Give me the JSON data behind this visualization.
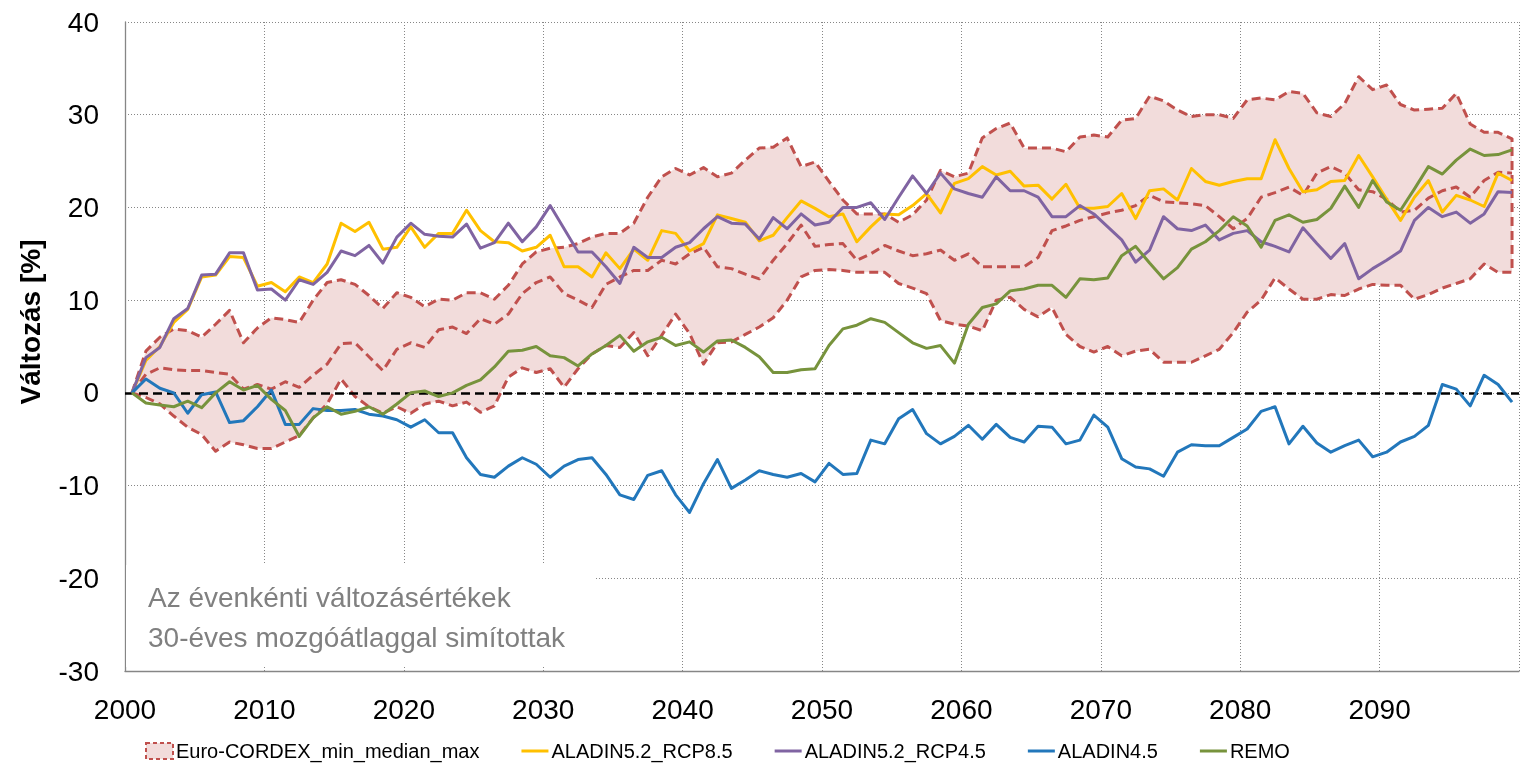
{
  "chart_data": {
    "type": "line",
    "ylabel": "Változás [%]",
    "annotations": [
      "Az évenkénti változásértékek\n30-éves mozgóátlaggal simítottak"
    ],
    "x": [
      2000.5,
      2001.5,
      2002.5,
      2003.5,
      2004.5,
      2005.5,
      2006.5,
      2007.5,
      2008.5,
      2009.5,
      2010.5,
      2011.5,
      2012.5,
      2013.5,
      2014.5,
      2015.5,
      2016.5,
      2017.5,
      2018.5,
      2019.5,
      2020.5,
      2021.5,
      2022.5,
      2023.5,
      2024.5,
      2025.5,
      2026.5,
      2027.5,
      2028.5,
      2029.5,
      2030.5,
      2031.5,
      2032.5,
      2033.5,
      2034.5,
      2035.5,
      2036.5,
      2037.5,
      2038.5,
      2039.5,
      2040.5,
      2041.5,
      2042.5,
      2043.5,
      2044.5,
      2045.5,
      2046.5,
      2047.5,
      2048.5,
      2049.5,
      2050.5,
      2051.5,
      2052.5,
      2053.5,
      2054.5,
      2055.5,
      2056.5,
      2057.5,
      2058.5,
      2059.5,
      2060.5,
      2061.5,
      2062.5,
      2063.5,
      2064.5,
      2065.5,
      2066.5,
      2067.5,
      2068.5,
      2069.5,
      2070.5,
      2071.5,
      2072.5,
      2073.5,
      2074.5,
      2075.5,
      2076.5,
      2077.5,
      2078.5,
      2079.5,
      2080.5,
      2081.5,
      2082.5,
      2083.5,
      2084.5,
      2085.5,
      2086.5,
      2087.5,
      2088.5,
      2089.5,
      2090.5,
      2091.5,
      2092.5,
      2093.5,
      2094.5,
      2095.5,
      2096.5,
      2097.5,
      2098.5,
      2099.5
    ],
    "xlim": [
      2000,
      2100
    ],
    "ylim": [
      -30,
      40
    ],
    "xticks": [
      2000,
      2010,
      2020,
      2030,
      2040,
      2050,
      2060,
      2070,
      2080,
      2090
    ],
    "yticks": [
      -30,
      -20,
      -10,
      0,
      10,
      20,
      30,
      40
    ],
    "grid": true,
    "legend": "bottom",
    "marker": "none",
    "line_style": "solid",
    "ref_lines": [
      {
        "axis": "y",
        "value": 0,
        "color": "#000000",
        "line_style": "dashed"
      }
    ],
    "series": [
      {
        "name": "Euro-CORDEX_min_median_max",
        "color": "#c0504d",
        "line_style": "dashed",
        "values": [
          0,
          2.0,
          2.7,
          2.5,
          2.4,
          2.4,
          2.2,
          2.0,
          0.4,
          0.9,
          0.4,
          1.2,
          0.6,
          1.9,
          3.1,
          5.3,
          5.4,
          3.9,
          2.4,
          4.7,
          5.4,
          4.9,
          6.8,
          7.1,
          6.4,
          8.0,
          7.4,
          8.5,
          10.7,
          11.9,
          12.5,
          10.7,
          10.0,
          9.2,
          11.7,
          12.5,
          13.2,
          13.2,
          14.3,
          13.9,
          15.0,
          15.7,
          13.6,
          13.4,
          12.8,
          12.3,
          14.3,
          16.1,
          18.1,
          15.8,
          16.0,
          16.1,
          14.3,
          15.0,
          15.9,
          15.3,
          14.8,
          15.0,
          15.4,
          14.3,
          15.0,
          13.6,
          13.6,
          13.6,
          13.6,
          14.6,
          17.5,
          18.0,
          18.6,
          19.0,
          19.4,
          19.7,
          20.2,
          21.3,
          20.6,
          20.5,
          20.4,
          20.2,
          19.0,
          17.7,
          18.8,
          21.1,
          21.6,
          22.2,
          21.3,
          23.7,
          24.4,
          23.7,
          21.9,
          21.7,
          20.9,
          19.5,
          19.7,
          21.0,
          21.8,
          22.2,
          21.1,
          22.9,
          23.8,
          23.7
        ],
        "lower": [
          0,
          -0.5,
          -1.2,
          -2.5,
          -3.7,
          -4.5,
          -6.3,
          -5.3,
          -5.6,
          -6.0,
          -6.0,
          -5.3,
          -4.6,
          -2.7,
          -1.2,
          1.5,
          -0.4,
          -1.5,
          -2.2,
          -1.5,
          -2.2,
          -1.2,
          -0.9,
          -1.4,
          -1.0,
          -2.1,
          -1.4,
          1.7,
          2.7,
          2.2,
          2.6,
          0.6,
          2.6,
          4.2,
          5.1,
          4.9,
          6.5,
          4.0,
          6.2,
          8.5,
          6.4,
          3.1,
          5.4,
          5.5,
          6.3,
          7.1,
          8.1,
          10.0,
          12.5,
          13.2,
          13.3,
          13.2,
          13.0,
          13.0,
          13.0,
          11.8,
          11.3,
          10.7,
          7.8,
          7.4,
          7.2,
          6.7,
          10.0,
          10.3,
          9.0,
          8.2,
          9.2,
          6.3,
          5.0,
          4.4,
          5.0,
          4.0,
          4.5,
          4.7,
          3.3,
          3.3,
          3.3,
          4.0,
          4.7,
          6.5,
          8.7,
          10.0,
          12.4,
          11.2,
          10.1,
          10.1,
          10.6,
          10.5,
          11.2,
          11.7,
          11.6,
          11.6,
          10.1,
          10.6,
          11.3,
          11.8,
          12.3,
          13.9,
          13.0,
          13.0
        ],
        "upper": [
          0,
          4.5,
          6.0,
          6.9,
          6.7,
          6.0,
          7.4,
          8.9,
          5.4,
          7.0,
          8.1,
          7.9,
          7.6,
          10.0,
          11.9,
          12.2,
          11.7,
          10.5,
          9.1,
          10.8,
          10.3,
          9.3,
          10.1,
          10.0,
          10.8,
          10.8,
          10.1,
          11.6,
          13.9,
          15.2,
          15.6,
          15.7,
          16.1,
          16.8,
          17.2,
          17.2,
          18.3,
          21.1,
          23.3,
          24.2,
          23.5,
          24.3,
          23.3,
          23.7,
          25.1,
          26.4,
          26.5,
          27.5,
          24.4,
          24.9,
          22.8,
          20.8,
          19.3,
          19.3,
          19.3,
          18.4,
          19.2,
          20.8,
          24.0,
          23.3,
          23.7,
          27.5,
          28.5,
          29.1,
          26.4,
          26.4,
          26.4,
          26.0,
          27.6,
          27.8,
          27.6,
          29.4,
          29.6,
          32.0,
          31.5,
          30.5,
          29.8,
          30.0,
          30.0,
          29.6,
          31.6,
          31.8,
          31.6,
          32.5,
          32.3,
          30.2,
          29.8,
          31.2,
          34.1,
          32.7,
          33.2,
          31.1,
          30.5,
          30.6,
          30.7,
          32.3,
          29.0,
          28.1,
          28.1,
          27.4
        ]
      },
      {
        "name": "ALADIN5.2_RCP8.5",
        "color": "#ffc000",
        "values": [
          0,
          3.5,
          5.0,
          7.6,
          9.0,
          12.5,
          12.7,
          14.7,
          14.6,
          11.5,
          11.9,
          10.9,
          12.5,
          11.9,
          13.9,
          18.3,
          17.4,
          18.4,
          15.5,
          15.7,
          17.9,
          15.7,
          17.2,
          17.2,
          19.7,
          17.5,
          16.3,
          16.2,
          15.3,
          15.7,
          17.0,
          13.6,
          13.6,
          12.5,
          15.1,
          13.4,
          15.5,
          14.3,
          17.5,
          17.2,
          15.3,
          16.1,
          19.2,
          18.8,
          18.4,
          16.4,
          17.0,
          18.9,
          20.7,
          19.9,
          19.0,
          19.3,
          16.3,
          17.9,
          19.3,
          19.2,
          20.2,
          21.5,
          19.4,
          22.6,
          23.1,
          24.4,
          23.5,
          23.9,
          22.3,
          22.4,
          20.9,
          22.5,
          19.9,
          19.9,
          20.1,
          21.5,
          18.8,
          21.8,
          22.0,
          20.8,
          24.2,
          22.8,
          22.4,
          22.8,
          23.1,
          23.1,
          27.3,
          24.2,
          21.7,
          21.9,
          22.8,
          22.9,
          25.6,
          23.3,
          20.9,
          18.6,
          21.1,
          22.9,
          19.5,
          21.3,
          20.8,
          20.1,
          23.7,
          22.9
        ]
      },
      {
        "name": "ALADIN5.2_RCP4.5",
        "color": "#8064a2",
        "values": [
          0,
          3.8,
          4.9,
          8.0,
          9.1,
          12.7,
          12.8,
          15.1,
          15.1,
          11.1,
          11.2,
          10.0,
          12.2,
          11.7,
          13.0,
          15.3,
          14.8,
          15.9,
          14.0,
          16.8,
          18.3,
          17.1,
          16.9,
          16.8,
          18.2,
          15.6,
          16.2,
          18.3,
          16.3,
          17.9,
          20.2,
          17.7,
          15.2,
          15.2,
          13.6,
          11.8,
          15.7,
          14.6,
          14.6,
          15.7,
          16.2,
          17.7,
          19.0,
          18.3,
          18.2,
          16.6,
          18.9,
          17.7,
          19.3,
          18.1,
          18.4,
          20.0,
          20.0,
          20.5,
          18.7,
          21.1,
          23.4,
          21.5,
          23.7,
          22.0,
          21.5,
          21.1,
          23.3,
          21.8,
          21.8,
          21.1,
          19.0,
          19.0,
          20.2,
          19.3,
          17.9,
          16.5,
          14.1,
          15.4,
          19.0,
          17.7,
          17.5,
          18.1,
          16.5,
          17.2,
          17.5,
          16.3,
          15.8,
          15.2,
          17.8,
          16.1,
          14.5,
          16.1,
          12.3,
          13.4,
          14.3,
          15.3,
          18.6,
          20.0,
          19.0,
          19.5,
          18.3,
          19.3,
          21.7,
          21.6
        ]
      },
      {
        "name": "ALADIN4.5",
        "color": "#2277bb",
        "values": [
          0,
          1.5,
          0.5,
          0.0,
          -2.2,
          -0.2,
          0.1,
          -3.2,
          -3.0,
          -1.5,
          0.3,
          -3.4,
          -3.4,
          -1.7,
          -1.9,
          -1.9,
          -1.8,
          -2.3,
          -2.5,
          -2.9,
          -3.7,
          -2.9,
          -4.3,
          -4.3,
          -7.0,
          -8.8,
          -9.1,
          -7.9,
          -7.0,
          -7.7,
          -9.1,
          -7.9,
          -7.2,
          -7.0,
          -8.8,
          -11.0,
          -11.5,
          -8.9,
          -8.4,
          -11.0,
          -12.9,
          -9.8,
          -7.2,
          -10.3,
          -9.4,
          -8.4,
          -8.8,
          -9.1,
          -8.7,
          -9.6,
          -7.6,
          -8.8,
          -8.7,
          -5.1,
          -5.5,
          -2.8,
          -1.8,
          -4.4,
          -5.5,
          -4.7,
          -3.5,
          -5.0,
          -3.4,
          -4.8,
          -5.3,
          -3.6,
          -3.7,
          -5.5,
          -5.1,
          -2.4,
          -3.7,
          -7.1,
          -8.0,
          -8.2,
          -9.0,
          -6.4,
          -5.6,
          -5.7,
          -5.7,
          -4.8,
          -3.9,
          -2.0,
          -1.5,
          -5.5,
          -3.6,
          -5.4,
          -6.4,
          -5.7,
          -5.1,
          -6.9,
          -6.4,
          -5.3,
          -4.7,
          -3.5,
          0.9,
          0.4,
          -1.4,
          1.9,
          0.9,
          -1.0
        ]
      },
      {
        "name": "REMO",
        "color": "#77933c",
        "values": [
          0,
          -1.1,
          -1.3,
          -1.5,
          -0.9,
          -1.6,
          0.0,
          1.2,
          0.3,
          0.8,
          -0.7,
          -1.9,
          -4.7,
          -2.7,
          -1.5,
          -2.3,
          -2.0,
          -1.5,
          -2.3,
          -1.2,
          0.0,
          0.2,
          -0.4,
          0.0,
          0.8,
          1.4,
          2.8,
          4.5,
          4.6,
          5.0,
          4.0,
          3.8,
          2.9,
          4.2,
          5.1,
          6.2,
          4.5,
          5.5,
          6.0,
          5.1,
          5.5,
          4.4,
          5.6,
          5.7,
          4.9,
          3.9,
          2.2,
          2.2,
          2.5,
          2.6,
          5.1,
          6.9,
          7.3,
          8.0,
          7.6,
          6.5,
          5.4,
          4.8,
          5.1,
          3.2,
          7.4,
          9.2,
          9.6,
          11.0,
          11.2,
          11.6,
          11.6,
          10.3,
          12.3,
          12.2,
          12.4,
          14.8,
          15.8,
          14.0,
          12.3,
          13.5,
          15.5,
          16.3,
          17.5,
          19.0,
          18.0,
          15.7,
          18.6,
          19.2,
          18.4,
          18.7,
          19.9,
          22.3,
          20.0,
          22.9,
          20.6,
          19.7,
          22.0,
          24.4,
          23.6,
          25.1,
          26.3,
          25.6,
          25.7,
          26.2
        ]
      }
    ]
  }
}
